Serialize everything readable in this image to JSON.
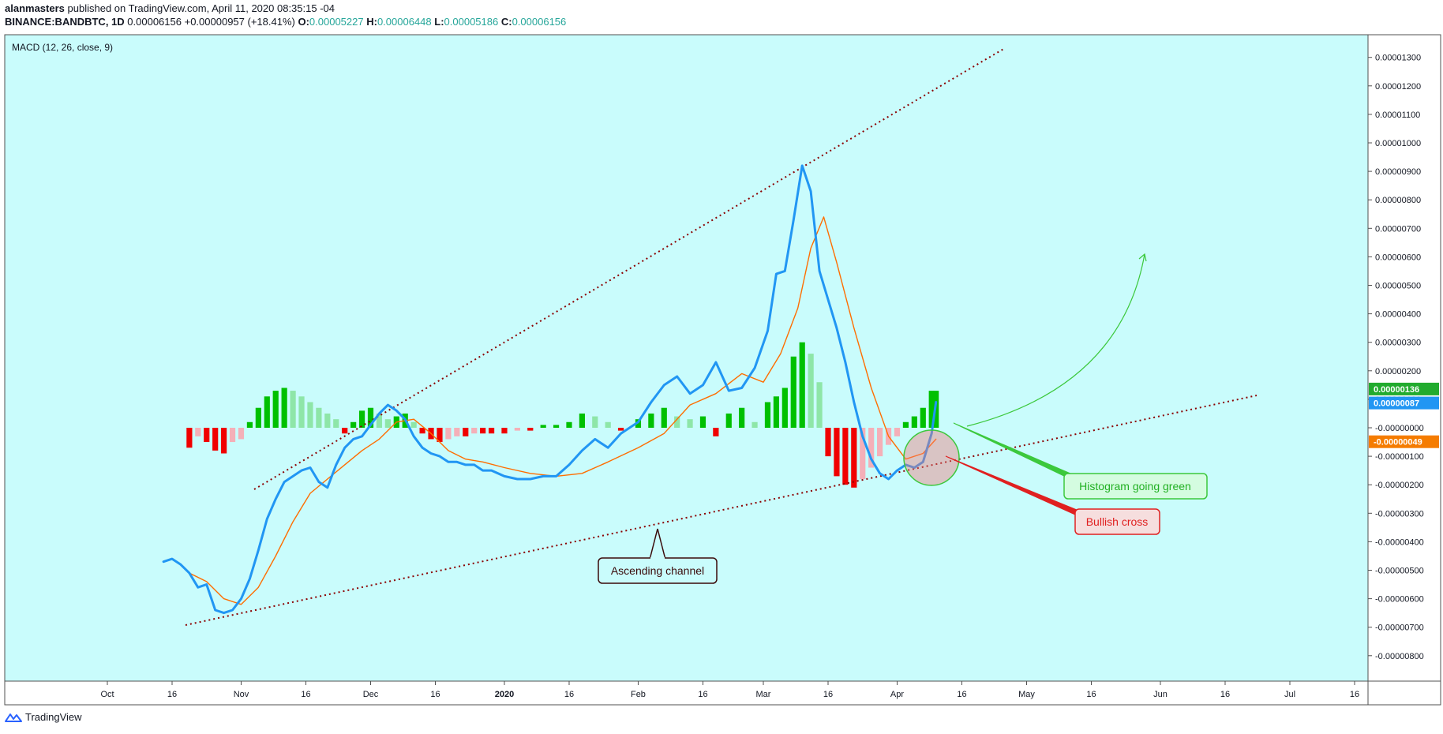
{
  "header": {
    "author": "alanmasters",
    "published": "published on TradingView.com, April 11, 2020 08:35:15 -04",
    "symbol": "BINANCE:BANDBTC, 1D",
    "last": "0.00006156",
    "change": "+0.00000957 (+18.41%)",
    "o_label": "O:",
    "o_val": "0.00005227",
    "h_label": "H:",
    "h_val": "0.00006448",
    "l_label": "L:",
    "l_val": "0.00005186",
    "c_label": "C:",
    "c_val": "0.00006156"
  },
  "indicator_label": "MACD (12, 26, close, 9)",
  "footer": {
    "brand": "TradingView",
    "icon": "tradingview-logo-icon"
  },
  "colors": {
    "background": "#c9fcfc",
    "macd": "#2196f3",
    "signal": "#ff6d00",
    "hist_up_strong": "#00c000",
    "hist_up_weak": "#8ee6a8",
    "hist_down_strong": "#f00000",
    "hist_down_weak": "#f4b0b8",
    "trendline": "#8b0000",
    "green_annotation": "#3cc83c",
    "red_annotation": "#e02020",
    "dark_annotation": "#3a0a0a"
  },
  "chart_data": {
    "type": "line",
    "title": "MACD (12, 26, close, 9)",
    "xlabel": "",
    "ylabel": "",
    "ylim": [
      -8.5e-06,
      1.37e-05
    ],
    "y_ticks": [
      "0.00001300",
      "0.00001200",
      "0.00001100",
      "0.00001000",
      "0.00000900",
      "0.00000800",
      "0.00000700",
      "0.00000600",
      "0.00000500",
      "0.00000400",
      "0.00000300",
      "0.00000200",
      "0.00000100",
      "-0.00000000",
      "-0.00000100",
      "-0.00000200",
      "-0.00000300",
      "-0.00000400",
      "-0.00000500",
      "-0.00000600",
      "-0.00000700",
      "-0.00000800"
    ],
    "y_tick_values": [
      1.3e-05,
      1.2e-05,
      1.1e-05,
      1e-05,
      9e-06,
      8e-06,
      7e-06,
      6e-06,
      5e-06,
      4e-06,
      3e-06,
      2e-06,
      1e-06,
      0,
      -1e-06,
      -2e-06,
      -3e-06,
      -4e-06,
      -5e-06,
      -6e-06,
      -7e-06,
      -8e-06
    ],
    "x_ticks": [
      "Oct",
      "16",
      "Nov",
      "16",
      "Dec",
      "16",
      "2020",
      "16",
      "Feb",
      "16",
      "Mar",
      "16",
      "Apr",
      "16",
      "May",
      "16",
      "Jun",
      "16",
      "Jul",
      "16"
    ],
    "x_tick_dates": [
      "2019-10-01",
      "2019-10-16",
      "2019-11-01",
      "2019-11-16",
      "2019-12-01",
      "2019-12-16",
      "2020-01-01",
      "2020-01-16",
      "2020-02-01",
      "2020-02-16",
      "2020-03-01",
      "2020-03-16",
      "2020-04-01",
      "2020-04-16",
      "2020-05-01",
      "2020-05-16",
      "2020-06-01",
      "2020-06-16",
      "2020-07-01",
      "2020-07-16"
    ],
    "series": [
      {
        "name": "MACD",
        "color": "#2196f3",
        "x": [
          "2019-10-14",
          "2019-10-16",
          "2019-10-18",
          "2019-10-20",
          "2019-10-22",
          "2019-10-24",
          "2019-10-26",
          "2019-10-28",
          "2019-10-30",
          "2019-11-01",
          "2019-11-03",
          "2019-11-05",
          "2019-11-07",
          "2019-11-09",
          "2019-11-11",
          "2019-11-13",
          "2019-11-15",
          "2019-11-17",
          "2019-11-19",
          "2019-11-21",
          "2019-11-23",
          "2019-11-25",
          "2019-11-27",
          "2019-11-29",
          "2019-12-01",
          "2019-12-03",
          "2019-12-05",
          "2019-12-07",
          "2019-12-09",
          "2019-12-11",
          "2019-12-13",
          "2019-12-15",
          "2019-12-17",
          "2019-12-19",
          "2019-12-21",
          "2019-12-23",
          "2019-12-25",
          "2019-12-27",
          "2019-12-29",
          "2020-01-01",
          "2020-01-04",
          "2020-01-07",
          "2020-01-10",
          "2020-01-13",
          "2020-01-16",
          "2020-01-19",
          "2020-01-22",
          "2020-01-25",
          "2020-01-28",
          "2020-02-01",
          "2020-02-04",
          "2020-02-07",
          "2020-02-10",
          "2020-02-13",
          "2020-02-16",
          "2020-02-19",
          "2020-02-22",
          "2020-02-25",
          "2020-02-28",
          "2020-03-02",
          "2020-03-04",
          "2020-03-06",
          "2020-03-08",
          "2020-03-10",
          "2020-03-12",
          "2020-03-14",
          "2020-03-16",
          "2020-03-18",
          "2020-03-20",
          "2020-03-22",
          "2020-03-24",
          "2020-03-26",
          "2020-03-28",
          "2020-03-30",
          "2020-04-01",
          "2020-04-03",
          "2020-04-05",
          "2020-04-07",
          "2020-04-09",
          "2020-04-10"
        ],
        "y": [
          -4.7e-06,
          -4.6e-06,
          -4.8e-06,
          -5.1e-06,
          -5.6e-06,
          -5.5e-06,
          -6.4e-06,
          -6.5e-06,
          -6.4e-06,
          -6e-06,
          -5.3e-06,
          -4.3e-06,
          -3.2e-06,
          -2.5e-06,
          -1.9e-06,
          -1.7e-06,
          -1.5e-06,
          -1.4e-06,
          -1.9e-06,
          -2.1e-06,
          -1.3e-06,
          -7e-07,
          -4e-07,
          -3e-07,
          1e-07,
          5e-07,
          8e-07,
          6e-07,
          3e-07,
          -3e-07,
          -7e-07,
          -9e-07,
          -1e-06,
          -1.2e-06,
          -1.2e-06,
          -1.3e-06,
          -1.3e-06,
          -1.5e-06,
          -1.5e-06,
          -1.7e-06,
          -1.8e-06,
          -1.8e-06,
          -1.7e-06,
          -1.7e-06,
          -1.3e-06,
          -8e-07,
          -4e-07,
          -7e-07,
          -2e-07,
          2e-07,
          9e-07,
          1.5e-06,
          1.8e-06,
          1.2e-06,
          1.5e-06,
          2.3e-06,
          1.3e-06,
          1.4e-06,
          2.1e-06,
          3.4e-06,
          5.4e-06,
          5.5e-06,
          7.3e-06,
          9.2e-06,
          8.3e-06,
          5.5e-06,
          4.5e-06,
          3.5e-06,
          2.3e-06,
          9e-07,
          -3e-07,
          -1.1e-06,
          -1.6e-06,
          -1.8e-06,
          -1.5e-06,
          -1.3e-06,
          -1.4e-06,
          -1.2e-06,
          -2e-07,
          9e-07
        ]
      },
      {
        "name": "Signal",
        "color": "#ff6d00",
        "x": [
          "2019-10-20",
          "2019-10-24",
          "2019-10-28",
          "2019-11-01",
          "2019-11-05",
          "2019-11-09",
          "2019-11-13",
          "2019-11-17",
          "2019-11-21",
          "2019-11-25",
          "2019-11-29",
          "2019-12-03",
          "2019-12-07",
          "2019-12-11",
          "2019-12-15",
          "2019-12-19",
          "2019-12-23",
          "2019-12-27",
          "2020-01-01",
          "2020-01-07",
          "2020-01-13",
          "2020-01-19",
          "2020-01-25",
          "2020-02-01",
          "2020-02-07",
          "2020-02-13",
          "2020-02-19",
          "2020-02-25",
          "2020-03-01",
          "2020-03-05",
          "2020-03-09",
          "2020-03-12",
          "2020-03-15",
          "2020-03-18",
          "2020-03-22",
          "2020-03-26",
          "2020-03-30",
          "2020-04-03",
          "2020-04-07",
          "2020-04-10"
        ],
        "y": [
          -5.1e-06,
          -5.4e-06,
          -6e-06,
          -6.2e-06,
          -5.6e-06,
          -4.5e-06,
          -3.3e-06,
          -2.3e-06,
          -1.8e-06,
          -1.3e-06,
          -8e-07,
          -4e-07,
          2e-07,
          3e-07,
          -2e-07,
          -8e-07,
          -1.1e-06,
          -1.2e-06,
          -1.4e-06,
          -1.6e-06,
          -1.7e-06,
          -1.6e-06,
          -1.2e-06,
          -7e-07,
          -2e-07,
          8e-07,
          1.2e-06,
          1.9e-06,
          1.6e-06,
          2.6e-06,
          4.2e-06,
          6.3e-06,
          7.4e-06,
          5.8e-06,
          3.5e-06,
          1.4e-06,
          -3e-07,
          -1.1e-06,
          -9e-07,
          -4e-07
        ]
      },
      {
        "name": "Histogram",
        "x": [
          "2019-10-20",
          "2019-10-22",
          "2019-10-24",
          "2019-10-26",
          "2019-10-28",
          "2019-10-30",
          "2019-11-01",
          "2019-11-03",
          "2019-11-05",
          "2019-11-07",
          "2019-11-09",
          "2019-11-11",
          "2019-11-13",
          "2019-11-15",
          "2019-11-17",
          "2019-11-19",
          "2019-11-21",
          "2019-11-23",
          "2019-11-25",
          "2019-11-27",
          "2019-11-29",
          "2019-12-01",
          "2019-12-03",
          "2019-12-05",
          "2019-12-07",
          "2019-12-09",
          "2019-12-11",
          "2019-12-13",
          "2019-12-15",
          "2019-12-17",
          "2019-12-19",
          "2019-12-21",
          "2019-12-23",
          "2019-12-25",
          "2019-12-27",
          "2019-12-29",
          "2020-01-01",
          "2020-01-04",
          "2020-01-07",
          "2020-01-10",
          "2020-01-13",
          "2020-01-16",
          "2020-01-19",
          "2020-01-22",
          "2020-01-25",
          "2020-01-28",
          "2020-02-01",
          "2020-02-04",
          "2020-02-07",
          "2020-02-10",
          "2020-02-13",
          "2020-02-16",
          "2020-02-19",
          "2020-02-22",
          "2020-02-25",
          "2020-02-28",
          "2020-03-02",
          "2020-03-04",
          "2020-03-06",
          "2020-03-08",
          "2020-03-10",
          "2020-03-12",
          "2020-03-14",
          "2020-03-16",
          "2020-03-18",
          "2020-03-20",
          "2020-03-22",
          "2020-03-24",
          "2020-03-26",
          "2020-03-28",
          "2020-03-30",
          "2020-04-01",
          "2020-04-03",
          "2020-04-05",
          "2020-04-07",
          "2020-04-09",
          "2020-04-10"
        ],
        "y": [
          -7e-07,
          -3e-07,
          -5e-07,
          -8e-07,
          -9e-07,
          -5e-07,
          -4e-07,
          2e-07,
          7e-07,
          1.1e-06,
          1.3e-06,
          1.4e-06,
          1.3e-06,
          1.1e-06,
          9e-07,
          7e-07,
          5e-07,
          3e-07,
          -2e-07,
          2e-07,
          6e-07,
          7e-07,
          5e-07,
          3e-07,
          4e-07,
          5e-07,
          2e-07,
          -2e-07,
          -4e-07,
          -5e-07,
          -4e-07,
          -3e-07,
          -3e-07,
          -2e-07,
          -2e-07,
          -2e-07,
          -2e-07,
          -1e-07,
          -1e-07,
          1e-07,
          1e-07,
          2e-07,
          5e-07,
          4e-07,
          2e-07,
          -1e-07,
          3e-07,
          5e-07,
          7e-07,
          4e-07,
          3e-07,
          4e-07,
          -3e-07,
          5e-07,
          7e-07,
          2e-07,
          9e-07,
          1.1e-06,
          1.4e-06,
          2.5e-06,
          3e-06,
          2.6e-06,
          1.6e-06,
          -1e-06,
          -1.7e-06,
          -2e-06,
          -2.1e-06,
          -1.8e-06,
          -1.4e-06,
          -1e-06,
          -6e-07,
          -3e-07,
          2e-07,
          4e-07,
          7e-07,
          1.3e-06,
          1.3e-06
        ]
      }
    ],
    "price_labels": [
      {
        "text": "0.00000136",
        "color": "#22ab2e",
        "value": 1.36e-06
      },
      {
        "text": "0.00000087",
        "color": "#2196f3",
        "value": 8.7e-07
      },
      {
        "text": "-0.00000049",
        "color": "#f57c00",
        "value": -4.9e-07
      }
    ],
    "annotations": [
      {
        "text": "Ascending channel",
        "color": "#3a0a0a",
        "fill": "#c9fcfc"
      },
      {
        "text": "Histogram going green",
        "color": "#22b022",
        "fill": "#d4fce0"
      },
      {
        "text": "Bullish cross",
        "color": "#e02020",
        "fill": "#f6dede"
      }
    ],
    "grid": false,
    "legend": "none"
  }
}
